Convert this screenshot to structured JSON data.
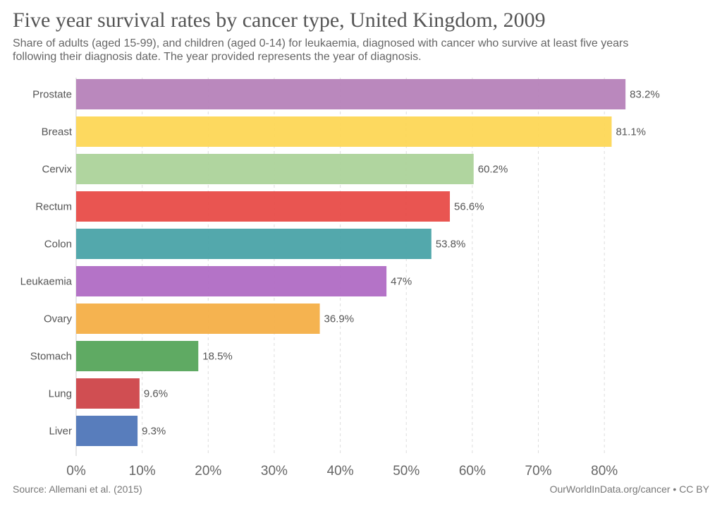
{
  "chart_data": {
    "type": "bar",
    "orientation": "horizontal",
    "title": "Five year survival rates by cancer type, United Kingdom, 2009",
    "subtitle": "Share of adults (aged 15-99), and children (aged 0-14) for leukaemia, diagnosed with cancer who survive at least five years following their diagnosis date. The year provided represents the year of diagnosis.",
    "categories": [
      "Prostate",
      "Breast",
      "Cervix",
      "Rectum",
      "Colon",
      "Leukaemia",
      "Ovary",
      "Stomach",
      "Lung",
      "Liver"
    ],
    "values": [
      83.2,
      81.1,
      60.2,
      56.6,
      53.8,
      47,
      36.9,
      18.5,
      9.6,
      9.3
    ],
    "value_labels": [
      "83.2%",
      "81.1%",
      "60.2%",
      "56.6%",
      "53.8%",
      "47%",
      "36.9%",
      "18.5%",
      "9.6%",
      "9.3%"
    ],
    "colors": [
      "#b682b9",
      "#fdd756",
      "#acd39a",
      "#e84c48",
      "#4aa3a8",
      "#b06cc4",
      "#f4af47",
      "#56a55b",
      "#ce4549",
      "#4f76b8"
    ],
    "xlim": [
      0,
      85
    ],
    "xticks": [
      0,
      10,
      20,
      30,
      40,
      50,
      60,
      70,
      80
    ],
    "xtick_labels": [
      "0%",
      "10%",
      "20%",
      "30%",
      "40%",
      "50%",
      "60%",
      "70%",
      "80%"
    ],
    "grid": "vertical dashed",
    "xlabel": "",
    "ylabel": ""
  },
  "footer": {
    "source": "Source: Allemani et al. (2015)",
    "credit": "OurWorldInData.org/cancer • CC BY"
  }
}
